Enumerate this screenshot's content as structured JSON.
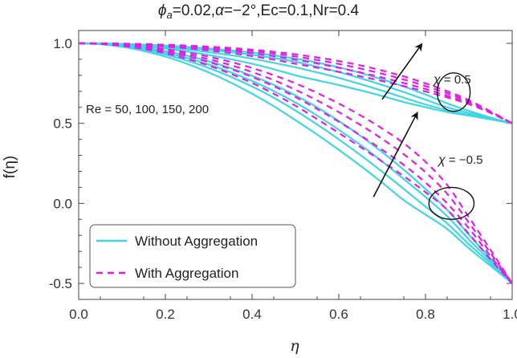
{
  "chart_data": {
    "type": "line",
    "title_parts": {
      "phi": "ϕ",
      "phi_sub": "a",
      "phi_value": "=0.02,",
      "alpha": "α",
      "rest": "=−2°,Ec=0.1,Nr=0.4"
    },
    "xlabel": "η",
    "ylabel": "f(η)",
    "xlim": [
      0.0,
      1.0
    ],
    "ylim": [
      -0.6,
      1.08
    ],
    "x_ticks": [
      "0.0",
      "0.2",
      "0.4",
      "0.6",
      "0.8",
      "1.0"
    ],
    "y_ticks": [
      "1.0",
      "0.5",
      "0.0",
      "-0.5"
    ],
    "x": [
      0.0,
      0.05,
      0.1,
      0.15,
      0.2,
      0.25,
      0.3,
      0.35,
      0.4,
      0.45,
      0.5,
      0.55,
      0.6,
      0.65,
      0.7,
      0.75,
      0.8,
      0.85,
      0.9,
      0.95,
      1.0
    ],
    "series": [
      {
        "name": "Without Aggregation, χ = 0.5, Re = 50",
        "style": "solid",
        "values": [
          1.0,
          0.998,
          0.992,
          0.982,
          0.967,
          0.949,
          0.927,
          0.901,
          0.872,
          0.838,
          0.8,
          0.769,
          0.739,
          0.706,
          0.671,
          0.633,
          0.601,
          0.571,
          0.548,
          0.525,
          0.5
        ]
      },
      {
        "name": "Without Aggregation, χ = 0.5, Re = 100",
        "style": "solid",
        "values": [
          1.0,
          0.998,
          0.994,
          0.986,
          0.975,
          0.962,
          0.945,
          0.926,
          0.904,
          0.878,
          0.85,
          0.818,
          0.784,
          0.745,
          0.704,
          0.66,
          0.618,
          0.582,
          0.554,
          0.528,
          0.5
        ]
      },
      {
        "name": "Without Aggregation, χ = 0.5, Re = 150",
        "style": "solid",
        "values": [
          1.0,
          0.999,
          0.995,
          0.99,
          0.982,
          0.972,
          0.96,
          0.945,
          0.928,
          0.908,
          0.885,
          0.854,
          0.82,
          0.782,
          0.74,
          0.695,
          0.648,
          0.6,
          0.565,
          0.531,
          0.5
        ]
      },
      {
        "name": "Without Aggregation, χ = 0.5, Re = 200",
        "style": "solid",
        "values": [
          1.0,
          0.999,
          0.996,
          0.992,
          0.986,
          0.978,
          0.968,
          0.956,
          0.942,
          0.925,
          0.905,
          0.88,
          0.85,
          0.815,
          0.775,
          0.73,
          0.68,
          0.625,
          0.578,
          0.536,
          0.5
        ]
      },
      {
        "name": "With Aggregation, χ = 0.5, Re = 50",
        "style": "dashed",
        "values": [
          1.0,
          0.999,
          0.995,
          0.989,
          0.98,
          0.969,
          0.955,
          0.939,
          0.92,
          0.898,
          0.872,
          0.848,
          0.822,
          0.794,
          0.764,
          0.733,
          0.699,
          0.662,
          0.62,
          0.565,
          0.5
        ]
      },
      {
        "name": "With Aggregation, χ = 0.5, Re = 100",
        "style": "dashed",
        "values": [
          1.0,
          0.999,
          0.996,
          0.992,
          0.985,
          0.977,
          0.966,
          0.953,
          0.938,
          0.92,
          0.898,
          0.874,
          0.847,
          0.818,
          0.786,
          0.752,
          0.715,
          0.673,
          0.627,
          0.568,
          0.5
        ]
      },
      {
        "name": "With Aggregation, χ = 0.5, Re = 150",
        "style": "dashed",
        "values": [
          1.0,
          0.999,
          0.997,
          0.994,
          0.989,
          0.982,
          0.974,
          0.964,
          0.951,
          0.936,
          0.918,
          0.896,
          0.871,
          0.842,
          0.81,
          0.774,
          0.733,
          0.688,
          0.636,
          0.572,
          0.5
        ]
      },
      {
        "name": "With Aggregation, χ = 0.5, Re = 200",
        "style": "dashed",
        "values": [
          1.0,
          1.0,
          0.998,
          0.995,
          0.991,
          0.986,
          0.979,
          0.971,
          0.96,
          0.947,
          0.931,
          0.912,
          0.889,
          0.862,
          0.83,
          0.793,
          0.75,
          0.701,
          0.645,
          0.575,
          0.5
        ]
      },
      {
        "name": "Without Aggregation, χ = −0.5, Re = 50",
        "style": "solid",
        "values": [
          1.0,
          0.994,
          0.978,
          0.952,
          0.917,
          0.872,
          0.818,
          0.756,
          0.685,
          0.607,
          0.52,
          0.43,
          0.335,
          0.235,
          0.13,
          0.02,
          -0.07,
          -0.16,
          -0.28,
          -0.39,
          -0.5
        ]
      },
      {
        "name": "Without Aggregation, χ = −0.5, Re = 100",
        "style": "solid",
        "values": [
          1.0,
          0.995,
          0.982,
          0.96,
          0.93,
          0.892,
          0.846,
          0.792,
          0.73,
          0.66,
          0.58,
          0.493,
          0.4,
          0.302,
          0.198,
          0.09,
          -0.02,
          -0.125,
          -0.255,
          -0.375,
          -0.5
        ]
      },
      {
        "name": "Without Aggregation, χ = −0.5, Re = 150",
        "style": "solid",
        "values": [
          1.0,
          0.996,
          0.985,
          0.967,
          0.941,
          0.908,
          0.868,
          0.82,
          0.765,
          0.702,
          0.63,
          0.549,
          0.46,
          0.365,
          0.262,
          0.152,
          0.04,
          -0.08,
          -0.225,
          -0.36,
          -0.5
        ]
      },
      {
        "name": "Without Aggregation, χ = −0.5, Re = 200",
        "style": "solid",
        "values": [
          1.0,
          0.997,
          0.988,
          0.973,
          0.951,
          0.923,
          0.888,
          0.846,
          0.797,
          0.741,
          0.675,
          0.6,
          0.515,
          0.422,
          0.32,
          0.21,
          0.09,
          -0.04,
          -0.195,
          -0.345,
          -0.5
        ]
      },
      {
        "name": "With Aggregation, χ = −0.5, Re = 50",
        "style": "dashed",
        "values": [
          1.0,
          0.996,
          0.984,
          0.965,
          0.938,
          0.903,
          0.861,
          0.81,
          0.752,
          0.685,
          0.61,
          0.527,
          0.44,
          0.352,
          0.262,
          0.17,
          0.07,
          -0.04,
          -0.19,
          -0.35,
          -0.5
        ]
      },
      {
        "name": "With Aggregation, χ = −0.5, Re = 100",
        "style": "dashed",
        "values": [
          1.0,
          0.997,
          0.987,
          0.971,
          0.948,
          0.919,
          0.883,
          0.84,
          0.79,
          0.732,
          0.665,
          0.59,
          0.51,
          0.425,
          0.335,
          0.24,
          0.13,
          0.0,
          -0.155,
          -0.33,
          -0.5
        ]
      },
      {
        "name": "With Aggregation, χ = −0.5, Re = 150",
        "style": "dashed",
        "values": [
          1.0,
          0.997,
          0.989,
          0.976,
          0.957,
          0.932,
          0.901,
          0.864,
          0.821,
          0.77,
          0.71,
          0.643,
          0.57,
          0.49,
          0.403,
          0.307,
          0.195,
          0.06,
          -0.12,
          -0.31,
          -0.5
        ]
      },
      {
        "name": "With Aggregation, χ = −0.5, Re = 200",
        "style": "dashed",
        "values": [
          1.0,
          0.998,
          0.991,
          0.98,
          0.964,
          0.943,
          0.916,
          0.884,
          0.846,
          0.801,
          0.75,
          0.69,
          0.624,
          0.55,
          0.468,
          0.375,
          0.26,
          0.115,
          -0.085,
          -0.29,
          -0.5
        ]
      }
    ],
    "annotations": {
      "re_text": "Re = 50, 100, 150, 200",
      "chi_symbol": "χ",
      "chi_pos_value": " = 0.5",
      "chi_neg_value": " = −0.5"
    },
    "legend": {
      "position": "bottom-left",
      "entries": [
        {
          "label": "Without Aggregation",
          "style": "solid"
        },
        {
          "label": "With Aggregation",
          "style": "dashed"
        }
      ]
    },
    "arrows": [
      {
        "from": [
          0.7,
          0.65
        ],
        "to": [
          0.79,
          0.99
        ]
      },
      {
        "from": [
          0.68,
          0.04
        ],
        "to": [
          0.78,
          0.56
        ]
      }
    ],
    "ellipses": [
      {
        "cx": 0.865,
        "cy": 0.695,
        "rx": 0.038,
        "ry": 0.12
      },
      {
        "cx": 0.86,
        "cy": 0.0,
        "rx": 0.052,
        "ry": 0.1
      }
    ]
  },
  "colors": {
    "without": "#3fd6e4",
    "with": "#e01ee6",
    "axis": "#444444"
  }
}
